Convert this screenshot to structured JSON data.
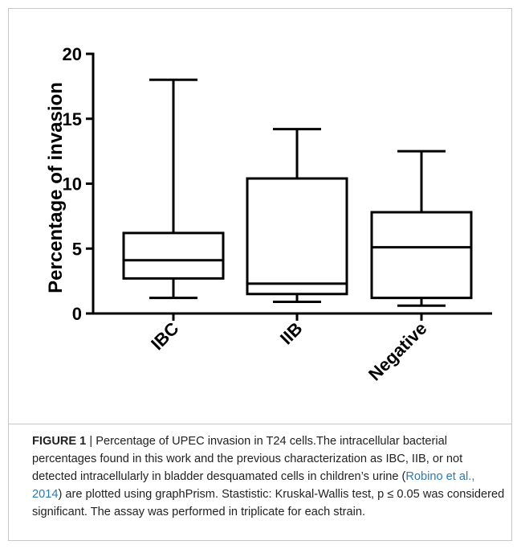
{
  "chart_data": {
    "type": "box",
    "ylabel": "Percentage of invasion",
    "ylim": [
      0,
      20
    ],
    "yticks": [
      0,
      5,
      10,
      15,
      20
    ],
    "grid": false,
    "categories": [
      "IBC",
      "IIB",
      "Negative"
    ],
    "boxes": [
      {
        "category": "IBC",
        "min": 1.2,
        "q1": 2.7,
        "median": 4.1,
        "q3": 6.2,
        "max": 18.0
      },
      {
        "category": "IIB",
        "min": 0.9,
        "q1": 1.5,
        "median": 2.3,
        "q3": 10.4,
        "max": 14.2
      },
      {
        "category": "Negative",
        "min": 0.6,
        "q1": 1.2,
        "median": 5.1,
        "q3": 7.8,
        "max": 12.5
      }
    ],
    "color": "#000000"
  },
  "caption": {
    "label": "FIGURE 1",
    "separator": " | ",
    "text_before_cite": "Percentage of UPEC invasion in T24 cells.The intracellular bacterial percentages found in this work and the previous characterization as IBC, IIB, or not detected intracellularly in bladder desquamated cells in children’s urine (",
    "citation": "Robino et al., 2014",
    "text_after_cite": ") are plotted using graphPrism. Stastistic: Kruskal-Wallis test, p ≤ 0.05 was considered significant. The assay was performed in triplicate for each strain."
  }
}
